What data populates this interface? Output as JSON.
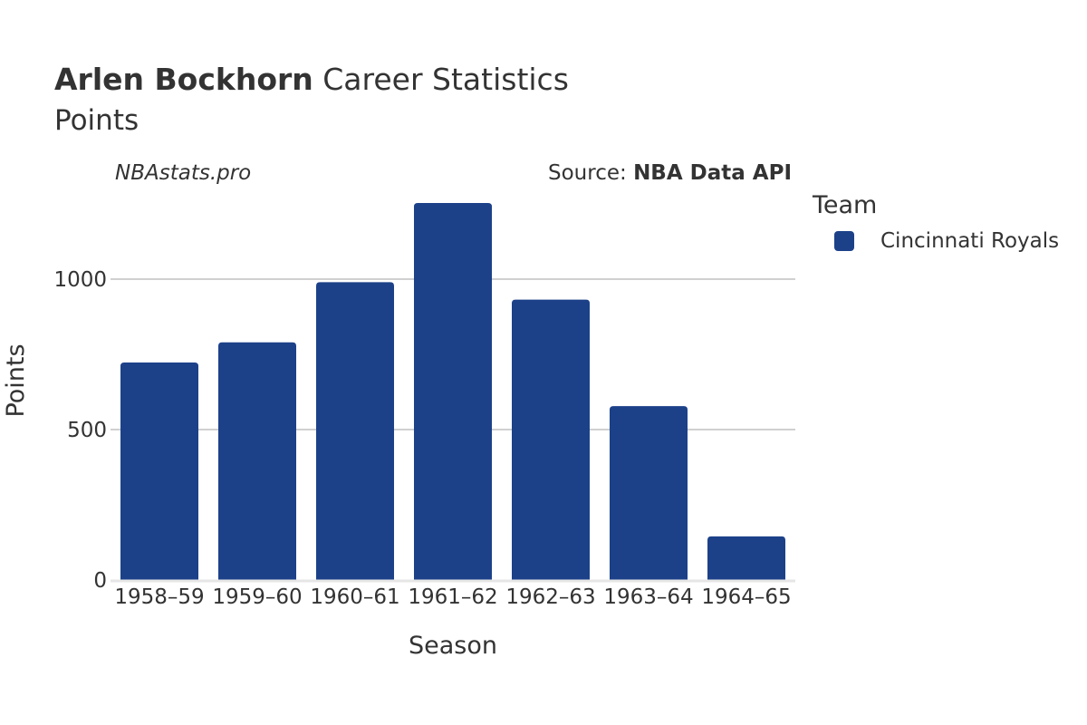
{
  "header": {
    "player_name": "Arlen Bockhorn",
    "title_rest": "Career Statistics",
    "subtitle": "Points",
    "watermark": "NBAstats.pro",
    "source_label": "Source: ",
    "source_value": "NBA Data API"
  },
  "legend": {
    "title": "Team",
    "items": [
      {
        "label": "Cincinnati Royals",
        "color": "#1c4189"
      }
    ]
  },
  "chart_data": {
    "type": "bar",
    "title": "Arlen Bockhorn Career Statistics",
    "subtitle": "Points",
    "xlabel": "Season",
    "ylabel": "Points",
    "categories": [
      "1958–59",
      "1959–60",
      "1960–61",
      "1961–62",
      "1962–63",
      "1963–64",
      "1964–65"
    ],
    "series": [
      {
        "name": "Cincinnati Royals",
        "color": "#1c4189",
        "values": [
          723,
          790,
          990,
          1253,
          932,
          578,
          145
        ]
      }
    ],
    "ylim": [
      0,
      1300
    ],
    "yticks": [
      0,
      500,
      1000
    ],
    "ytick_labels": [
      "0",
      "500",
      "1000"
    ],
    "grid": true,
    "legend_position": "right"
  }
}
